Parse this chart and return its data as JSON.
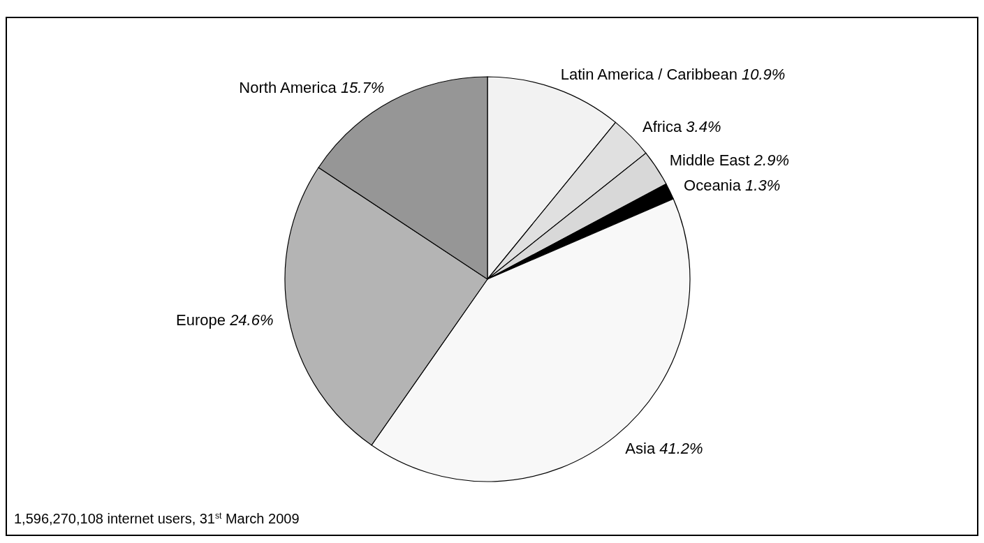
{
  "chart_data": {
    "type": "pie",
    "categories": [
      "Latin America / Caribbean",
      "Africa",
      "Middle East",
      "Oceania",
      "Asia",
      "Europe",
      "North America"
    ],
    "values": [
      10.9,
      3.4,
      2.9,
      1.3,
      41.2,
      24.6,
      15.7
    ],
    "value_labels": [
      "10.9%",
      "3.4%",
      "2.9%",
      "1.3%",
      "41.2%",
      "24.6%",
      "15.7%"
    ],
    "colors": [
      "#f2f2f2",
      "#e0e0e0",
      "#d8d8d8",
      "#000000",
      "#f8f8f8",
      "#b4b4b4",
      "#969696"
    ],
    "annotations": [
      "1,596,270,108 internet users, 31$^{st}$ March 2009"
    ]
  }
}
